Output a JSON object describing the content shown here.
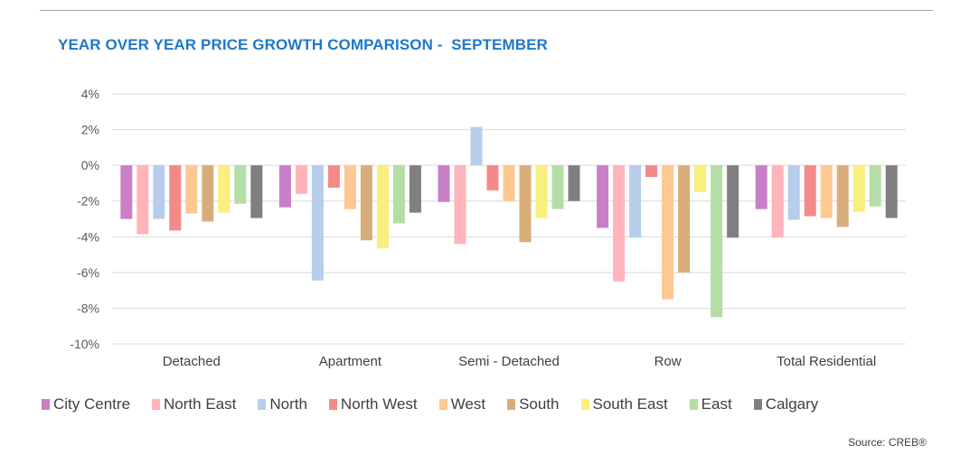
{
  "title": "YEAR OVER YEAR PRICE GROWTH COMPARISON -  SEPTEMBER",
  "source": "Source: CREB®",
  "chart_data": {
    "type": "bar",
    "title": "YEAR OVER YEAR PRICE GROWTH COMPARISON -  SEPTEMBER",
    "xlabel": "",
    "ylabel": "",
    "ylim": [
      -10,
      4
    ],
    "yticks": [
      4,
      2,
      0,
      -2,
      -4,
      -6,
      -8,
      -10
    ],
    "ytick_labels": [
      "4%",
      "2%",
      "0%",
      "-2%",
      "-4%",
      "-6%",
      "-8%",
      "-10%"
    ],
    "grid": true,
    "legend_position": "bottom",
    "categories": [
      "Detached",
      "Apartment",
      "Semi - Detached",
      "Row",
      "Total Residential"
    ],
    "series": [
      {
        "name": "City Centre",
        "color": "#c97fc8",
        "values": [
          -3.0,
          -2.35,
          -2.05,
          -3.5,
          -2.45
        ]
      },
      {
        "name": "North East",
        "color": "#ffb3ba",
        "values": [
          -3.85,
          -1.6,
          -4.4,
          -6.5,
          -4.05
        ]
      },
      {
        "name": "North",
        "color": "#b8cdec",
        "values": [
          -3.0,
          -6.45,
          2.15,
          -4.05,
          -3.05
        ]
      },
      {
        "name": "North West",
        "color": "#f4898a",
        "values": [
          -3.65,
          -1.25,
          -1.4,
          -0.65,
          -2.85
        ]
      },
      {
        "name": "West",
        "color": "#fdc891",
        "values": [
          -2.7,
          -2.45,
          -2.0,
          -7.5,
          -2.95
        ]
      },
      {
        "name": "South",
        "color": "#d9ad7a",
        "values": [
          -3.15,
          -4.2,
          -4.3,
          -6.0,
          -3.45
        ]
      },
      {
        "name": "South East",
        "color": "#f9ef7c",
        "values": [
          -2.65,
          -4.65,
          -2.95,
          -1.5,
          -2.6
        ]
      },
      {
        "name": "East",
        "color": "#b4dea5",
        "values": [
          -2.15,
          -3.25,
          -2.45,
          -8.5,
          -2.3
        ]
      },
      {
        "name": "Calgary",
        "color": "#7f7f7f",
        "values": [
          -2.95,
          -2.65,
          -2.0,
          -4.05,
          -2.95
        ]
      }
    ]
  }
}
